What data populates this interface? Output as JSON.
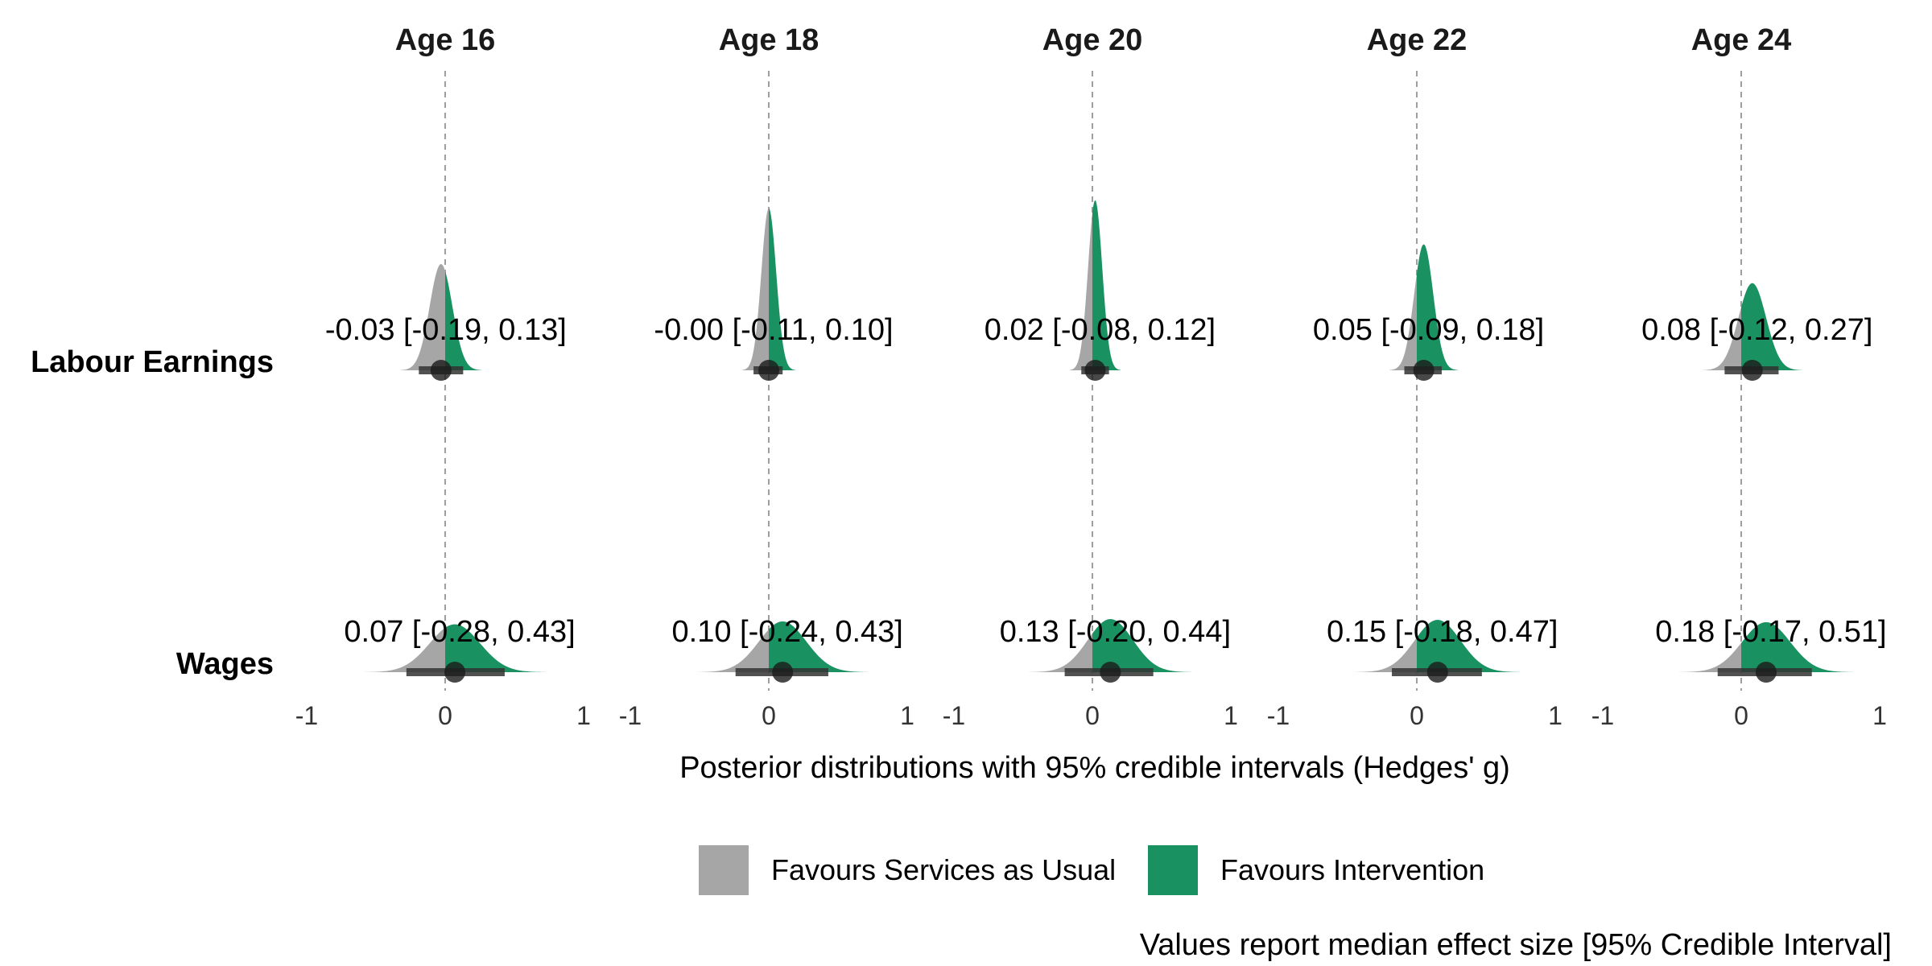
{
  "chart_data": {
    "type": "area",
    "description_type": "faceted posterior density (half-eye) plot",
    "facets": [
      "Age 16",
      "Age 18",
      "Age 20",
      "Age 22",
      "Age 24"
    ],
    "outcomes": [
      "Labour Earnings",
      "Wages"
    ],
    "xlim": [
      -1,
      1
    ],
    "xticks": [
      -1,
      0,
      1
    ],
    "x_tick_labels": [
      "-1",
      "0",
      "1"
    ],
    "reference_line": 0,
    "xlabel": "Posterior distributions with 95% credible intervals (Hedges' g)",
    "caption": "Values report median effect size [95% Credible Interval]",
    "colors": {
      "below_zero": "#a6a6a6",
      "above_zero": "#1a9160",
      "point": "#1a1a1a",
      "interval": "#333333"
    },
    "legend": {
      "position": "bottom",
      "items": [
        {
          "label": "Favours Services as Usual",
          "color": "#a6a6a6"
        },
        {
          "label": "Favours Intervention",
          "color": "#1a9160"
        }
      ]
    },
    "estimates": [
      {
        "outcome": "Labour Earnings",
        "age": "Age 16",
        "median": -0.03,
        "lower": -0.19,
        "upper": 0.13,
        "label": "-0.03 [-0.19, 0.13]"
      },
      {
        "outcome": "Labour Earnings",
        "age": "Age 18",
        "median": 0.0,
        "lower": -0.11,
        "upper": 0.1,
        "label": "-0.00 [-0.11, 0.10]"
      },
      {
        "outcome": "Labour Earnings",
        "age": "Age 20",
        "median": 0.02,
        "lower": -0.08,
        "upper": 0.12,
        "label": "0.02 [-0.08, 0.12]"
      },
      {
        "outcome": "Labour Earnings",
        "age": "Age 22",
        "median": 0.05,
        "lower": -0.09,
        "upper": 0.18,
        "label": "0.05 [-0.09, 0.18]"
      },
      {
        "outcome": "Labour Earnings",
        "age": "Age 24",
        "median": 0.08,
        "lower": -0.12,
        "upper": 0.27,
        "label": "0.08 [-0.12, 0.27]"
      },
      {
        "outcome": "Wages",
        "age": "Age 16",
        "median": 0.07,
        "lower": -0.28,
        "upper": 0.43,
        "label": "0.07 [-0.28, 0.43]"
      },
      {
        "outcome": "Wages",
        "age": "Age 18",
        "median": 0.1,
        "lower": -0.24,
        "upper": 0.43,
        "label": "0.10 [-0.24, 0.43]"
      },
      {
        "outcome": "Wages",
        "age": "Age 20",
        "median": 0.13,
        "lower": -0.2,
        "upper": 0.44,
        "label": "0.13 [-0.20, 0.44]"
      },
      {
        "outcome": "Wages",
        "age": "Age 22",
        "median": 0.15,
        "lower": -0.18,
        "upper": 0.47,
        "label": "0.15 [-0.18, 0.47]"
      },
      {
        "outcome": "Wages",
        "age": "Age 24",
        "median": 0.18,
        "lower": -0.17,
        "upper": 0.51,
        "label": "0.18 [-0.17, 0.51]"
      }
    ]
  }
}
